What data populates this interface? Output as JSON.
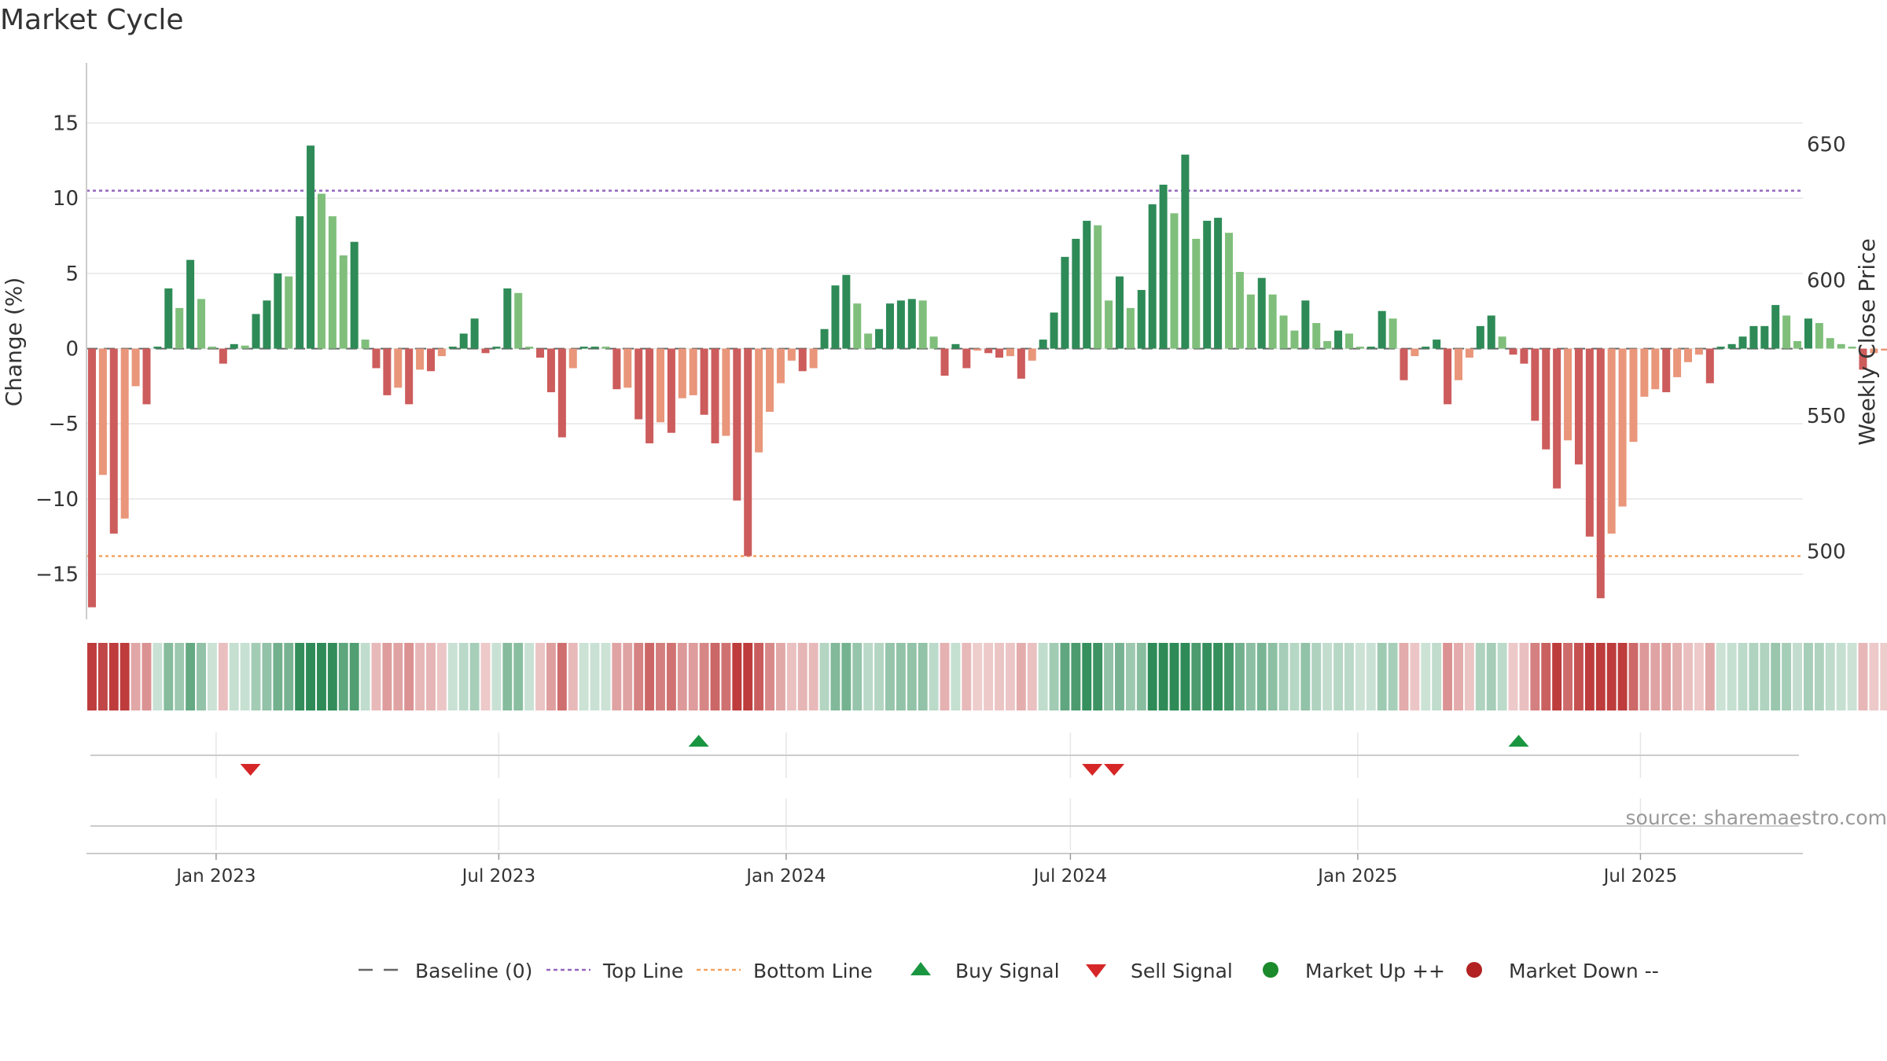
{
  "chart_data": {
    "type": "bar",
    "title": "Market Cycle",
    "ylabel": "Change (%)",
    "y2label": "Weekly Close Price",
    "ylim": [
      -18,
      19
    ],
    "y2lim": [
      475,
      680
    ],
    "yticks": [
      15,
      10,
      5,
      0,
      -5,
      -10,
      -15
    ],
    "yticks_right": [
      650,
      600,
      550,
      500
    ],
    "xlim": [
      "2022-10-10",
      "2025-10-13"
    ],
    "xticks": [
      {
        "date": "2023-01-01",
        "label": "Jan 2023"
      },
      {
        "date": "2023-07-01",
        "label": "Jul 2023"
      },
      {
        "date": "2024-01-01",
        "label": "Jan 2024"
      },
      {
        "date": "2024-07-01",
        "label": "Jul 2024"
      },
      {
        "date": "2025-01-01",
        "label": "Jan 2025"
      },
      {
        "date": "2025-07-01",
        "label": "Jul 2025"
      }
    ],
    "grid": true,
    "first_week": "2022-10-10",
    "week_step_days": 7,
    "lines": {
      "baseline": 0,
      "top": 10.5,
      "bottom": -13.8
    },
    "values": [
      -17.2,
      -8.4,
      -12.3,
      -11.3,
      -2.5,
      -3.7,
      0.1,
      4.0,
      2.7,
      5.9,
      3.3,
      0.0,
      -1.0,
      0.3,
      0.2,
      2.3,
      3.2,
      5.0,
      4.8,
      8.8,
      13.5,
      10.3,
      8.8,
      6.2,
      7.1,
      0.6,
      -1.3,
      -3.1,
      -2.6,
      -3.7,
      -1.4,
      -1.5,
      -0.5,
      0.1,
      1.0,
      2.0,
      -0.3,
      0.1,
      4.0,
      3.7,
      0.1,
      -0.6,
      -2.9,
      -5.9,
      -1.3,
      0.0,
      0.1,
      0.0,
      -2.7,
      -2.6,
      -4.7,
      -6.3,
      -4.9,
      -5.6,
      -3.3,
      -3.1,
      -4.4,
      -6.3,
      -5.8,
      -10.1,
      -13.8,
      -6.9,
      -4.2,
      -2.3,
      -0.8,
      -1.5,
      -1.3,
      1.3,
      4.2,
      4.9,
      3.0,
      1.0,
      1.3,
      3.0,
      3.2,
      3.3,
      3.2,
      0.8,
      -1.8,
      0.3,
      -1.3,
      -0.1,
      -0.3,
      -0.6,
      -0.5,
      -2.0,
      -0.8,
      0.6,
      2.4,
      6.1,
      7.3,
      8.5,
      8.2,
      3.2,
      4.8,
      2.7,
      3.9,
      9.6,
      10.9,
      9.0,
      12.9,
      7.3,
      8.5,
      8.7,
      7.7,
      5.1,
      3.6,
      4.7,
      3.6,
      2.2,
      1.2,
      3.2,
      1.7,
      0.5,
      1.2,
      1.0,
      0.0,
      0.1,
      2.5,
      2.0,
      -2.1,
      -0.5,
      0.0,
      0.6,
      -3.7,
      -2.1,
      -0.6,
      1.5,
      2.2,
      0.8,
      -0.4,
      -1.0,
      -4.8,
      -6.7,
      -9.3,
      -6.1,
      -7.7,
      -12.5,
      -16.6,
      -12.3,
      -10.5,
      -6.2,
      -3.2,
      -2.7,
      -2.9,
      -1.9,
      -0.9,
      -0.4,
      -2.3,
      0.0,
      0.3,
      0.8,
      1.5,
      1.5,
      2.9,
      2.2,
      0.5,
      2.0,
      1.7,
      0.7,
      0.3,
      0.0,
      -1.4,
      -0.3,
      -0.1
    ],
    "signals": [
      {
        "type": "sell",
        "date": "2023-01-23"
      },
      {
        "type": "buy",
        "date": "2023-11-06"
      },
      {
        "type": "sell",
        "date": "2024-07-15"
      },
      {
        "type": "sell",
        "date": "2024-07-29"
      },
      {
        "type": "buy",
        "date": "2025-04-14"
      }
    ],
    "legend": [
      {
        "label": "Baseline (0)",
        "symbol": "dash",
        "color": "#666666"
      },
      {
        "label": "Top Line",
        "symbol": "dotted",
        "color": "#9467bd"
      },
      {
        "label": "Bottom Line",
        "symbol": "dotted",
        "color": "#f4a460"
      },
      {
        "label": "Buy Signal",
        "symbol": "triangle-up",
        "color": "#1a9641"
      },
      {
        "label": "Sell Signal",
        "symbol": "triangle-down",
        "color": "#d62728"
      },
      {
        "label": "Market Up ++",
        "symbol": "circle",
        "color": "#1a8a2a"
      },
      {
        "label": "Market Down --",
        "symbol": "circle",
        "color": "#b22222"
      }
    ],
    "legend_position": "bottom-center"
  },
  "source": "source: sharemaestro.com",
  "colors": {
    "strong_up": "#2e8b57",
    "weak_up": "#7fbf7b",
    "strong_down": "#cd5c5c",
    "weak_down": "#e9967a",
    "grid": "#e6e6e6",
    "axis": "#cccccc"
  }
}
